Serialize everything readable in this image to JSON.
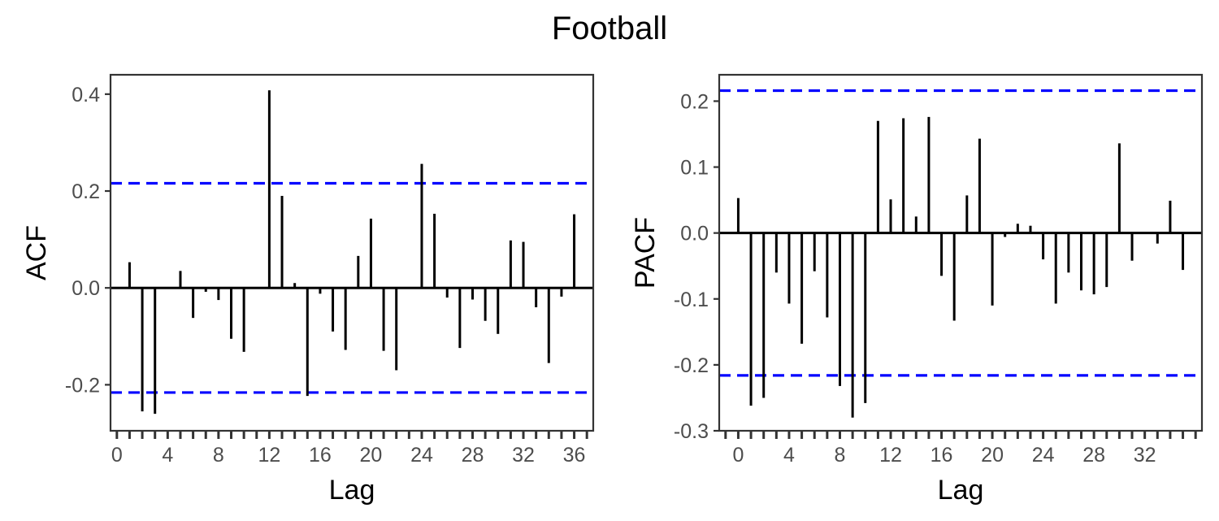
{
  "figure_title": "Football",
  "colors": {
    "bars": "#000000",
    "confidence_lines": "#0000ff",
    "tick_text": "#4d4d4d",
    "frame": "#333333"
  },
  "chart_data": [
    {
      "id": "acf",
      "type": "bar",
      "title": "",
      "xlabel": "Lag",
      "ylabel": "ACF",
      "xlim": [
        -0.5,
        37.5
      ],
      "ylim": [
        -0.295,
        0.44
      ],
      "x_ticks": [
        0,
        4,
        8,
        12,
        16,
        20,
        24,
        28,
        32,
        36
      ],
      "y_ticks": [
        -0.2,
        0.0,
        0.2,
        0.4
      ],
      "y_tick_labels": [
        "-0.2",
        "0.0",
        "0.2",
        "0.4"
      ],
      "confidence_bound": 0.216,
      "grid": false,
      "x": [
        1,
        2,
        3,
        4,
        5,
        6,
        7,
        8,
        9,
        10,
        11,
        12,
        13,
        14,
        15,
        16,
        17,
        18,
        19,
        20,
        21,
        22,
        23,
        24,
        25,
        26,
        27,
        28,
        29,
        30,
        31,
        32,
        33,
        34,
        35,
        36
      ],
      "values": [
        0.053,
        -0.255,
        -0.26,
        0.0,
        0.035,
        -0.062,
        -0.008,
        -0.025,
        -0.105,
        -0.132,
        0.002,
        0.408,
        0.19,
        0.01,
        -0.223,
        -0.012,
        -0.09,
        -0.128,
        0.066,
        0.143,
        -0.13,
        -0.17,
        0.0,
        0.256,
        0.153,
        -0.02,
        -0.124,
        -0.024,
        -0.068,
        -0.095,
        0.098,
        0.095,
        -0.04,
        -0.155,
        -0.018,
        0.152
      ]
    },
    {
      "id": "pacf",
      "type": "bar",
      "title": "",
      "xlabel": "Lag",
      "ylabel": "PACF",
      "xlim": [
        -1.5,
        36.5
      ],
      "ylim": [
        -0.3,
        0.24
      ],
      "x_ticks": [
        0,
        4,
        8,
        12,
        16,
        20,
        24,
        28,
        32
      ],
      "y_ticks": [
        -0.3,
        -0.2,
        -0.1,
        0.0,
        0.1,
        0.2
      ],
      "y_tick_labels": [
        "-0.3",
        "-0.2",
        "-0.1",
        "0.0",
        "0.1",
        "0.2"
      ],
      "confidence_bound": 0.216,
      "grid": false,
      "x": [
        0,
        1,
        2,
        3,
        4,
        5,
        6,
        7,
        8,
        9,
        10,
        11,
        12,
        13,
        14,
        15,
        16,
        17,
        18,
        19,
        20,
        21,
        22,
        23,
        24,
        25,
        26,
        27,
        28,
        29,
        30,
        31,
        32,
        33,
        34,
        35
      ],
      "values": [
        0.053,
        -0.262,
        -0.25,
        -0.06,
        -0.107,
        -0.168,
        -0.058,
        -0.128,
        -0.232,
        -0.28,
        -0.258,
        0.17,
        0.051,
        0.174,
        0.025,
        0.176,
        -0.065,
        -0.133,
        0.057,
        0.143,
        -0.11,
        -0.006,
        0.014,
        0.011,
        -0.04,
        -0.107,
        -0.06,
        -0.087,
        -0.093,
        -0.082,
        0.136,
        -0.042,
        0.0,
        -0.016,
        0.049,
        -0.056
      ]
    }
  ]
}
